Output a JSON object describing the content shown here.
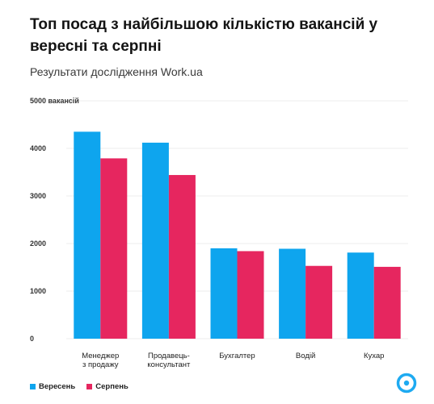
{
  "header": {
    "title": "Топ посад з найбільшою кількістю вакансій у вересні та серпні",
    "subtitle": "Результати дослідження Work.ua"
  },
  "colors": {
    "september": "#0ea5ee",
    "august": "#e6265f",
    "grid": "#eeeeee",
    "logo": "#1eaaf1"
  },
  "chart_data": {
    "type": "bar",
    "categories": [
      [
        "Менеджер",
        "з продажу"
      ],
      [
        "Продавець-",
        "консультант"
      ],
      [
        "Бухгалтер"
      ],
      [
        "Водій"
      ],
      [
        "Кухар"
      ]
    ],
    "series": [
      {
        "name": "Вересень",
        "values": [
          4350,
          4120,
          1900,
          1890,
          1810
        ]
      },
      {
        "name": "Серпень",
        "values": [
          3790,
          3440,
          1840,
          1530,
          1510
        ]
      }
    ],
    "yticks": [
      0,
      1000,
      2000,
      3000,
      4000,
      5000
    ],
    "ytick_top_label": "5000 вакансій",
    "ylim": [
      0,
      5000
    ],
    "grid": true,
    "legend_position": "bottom-left"
  },
  "logo": {
    "name": "work-ua-logo-icon"
  }
}
